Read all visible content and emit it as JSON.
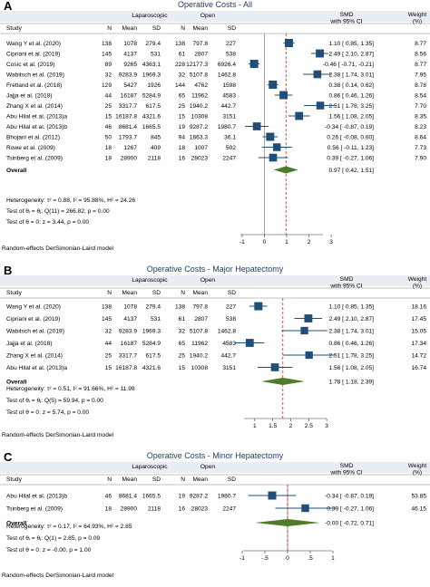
{
  "colors": {
    "marker": "#1f4e79",
    "diamond": "#4e7c2a",
    "title": "#1f3d7a",
    "refline": "#d62728",
    "frame": "#e9edf4"
  },
  "chart_data": [
    {
      "type": "forest",
      "panel_label": "A",
      "title": "Operative Costs - All",
      "group_headers": {
        "left": "Laparoscopic",
        "right": "Open",
        "effect": "SMD",
        "effect_sub": "with 95% CI",
        "weight": "Weight",
        "weight_sub": "(%)"
      },
      "column_headers": {
        "study": "Study",
        "n1": "N",
        "mean1": "Mean",
        "sd1": "SD",
        "n2": "N",
        "mean2": "Mean",
        "sd2": "SD"
      },
      "xlim": [
        -1.2,
        3.2
      ],
      "xticks": [
        "-1",
        "0",
        "1",
        "2",
        "3"
      ],
      "xtick_values": [
        -1,
        0,
        1,
        2,
        3
      ],
      "refline": 0.97,
      "studies": [
        {
          "study": "Wang Y et al. (2020)",
          "n1": "138",
          "mean1": "1078",
          "sd1": "279.4",
          "n2": "138",
          "mean2": "797.8",
          "sd2": "227",
          "smd": 1.1,
          "lo": 0.85,
          "hi": 1.35,
          "ci_text": "1.10 [  0.85,  1.35]",
          "weight": "8.77"
        },
        {
          "study": "Cipriani et al. (2019)",
          "n1": "145",
          "mean1": "4137",
          "sd1": "531",
          "n2": "61",
          "mean2": "2807",
          "sd2": "538",
          "smd": 2.49,
          "lo": 2.1,
          "hi": 2.87,
          "ci_text": "2.49 [  2.10,  2.87]",
          "weight": "8.56"
        },
        {
          "study": "Cosic et al. (2019)",
          "n1": "89",
          "mean1": "9265",
          "sd1": "4363.1",
          "n2": "228",
          "mean2": "12177.3",
          "sd2": "6926.4",
          "smd": -0.46,
          "lo": -0.71,
          "hi": -0.21,
          "ci_text": "-0.46 [ -0.71, -0.21]",
          "weight": "8.77"
        },
        {
          "study": "Wabitsch et al. (2019)",
          "n1": "32",
          "mean1": "9283.9",
          "sd1": "1969.3",
          "n2": "32",
          "mean2": "5107.8",
          "sd2": "1462.8",
          "smd": 2.38,
          "lo": 1.74,
          "hi": 3.01,
          "ci_text": "2.38 [  1.74,  3.01]",
          "weight": "7.95"
        },
        {
          "study": "Fretland et al. (2018)",
          "n1": "129",
          "mean1": "5427",
          "sd1": "1926",
          "n2": "144",
          "mean2": "4762",
          "sd2": "1598",
          "smd": 0.38,
          "lo": 0.14,
          "hi": 0.62,
          "ci_text": "0.38 [  0.14,  0.62]",
          "weight": "8.78"
        },
        {
          "study": "Jajja et al. (2018)",
          "n1": "44",
          "mean1": "16187",
          "sd1": "5284.9",
          "n2": "65",
          "mean2": "11962",
          "sd2": "4583",
          "smd": 0.86,
          "lo": 0.46,
          "hi": 1.26,
          "ci_text": "0.86 [  0.46,  1.26]",
          "weight": "8.54"
        },
        {
          "study": "Zhang X et al. (2014)",
          "n1": "25",
          "mean1": "3317.7",
          "sd1": "617.5",
          "n2": "25",
          "mean2": "1940.2",
          "sd2": "442.7",
          "smd": 2.51,
          "lo": 1.78,
          "hi": 3.25,
          "ci_text": "2.51 [  1.78,  3.25]",
          "weight": "7.70"
        },
        {
          "study": "Abu Hilal et al. (2013)a",
          "n1": "15",
          "mean1": "16187.8",
          "sd1": "4321.6",
          "n2": "15",
          "mean2": "10308",
          "sd2": "3151",
          "smd": 1.56,
          "lo": 1.08,
          "hi": 2.05,
          "ci_text": "1.56 [  1.08,  2.05]",
          "weight": "8.35"
        },
        {
          "study": "Abu Hilal et al. (2013)b",
          "n1": "46",
          "mean1": "8681.4",
          "sd1": "1665.5",
          "n2": "19",
          "mean2": "9287.2",
          "sd2": "1980.7",
          "smd": -0.34,
          "lo": -0.87,
          "hi": 0.19,
          "ci_text": "-0.34 [ -0.87,  0.19]",
          "weight": "8.23"
        },
        {
          "study": "Bhojani et al. (2012)",
          "n1": "50",
          "mean1": "1793.7",
          "sd1": "845",
          "n2": "94",
          "mean2": "1663.3",
          "sd2": "36.1",
          "smd": 0.26,
          "lo": -0.08,
          "hi": 0.6,
          "ci_text": "0.26 [ -0.08,  0.60]",
          "weight": "8.64"
        },
        {
          "study": "Rowe et al. (2009)",
          "n1": "18",
          "mean1": "1267",
          "sd1": "409",
          "n2": "18",
          "mean2": "1007",
          "sd2": "502",
          "smd": 0.56,
          "lo": -0.11,
          "hi": 1.23,
          "ci_text": "0.56 [ -0.11,  1.23]",
          "weight": "7.73"
        },
        {
          "study": "Tsinberg et al. (2009)",
          "n1": "18",
          "mean1": "28900",
          "sd1": "2118",
          "n2": "16",
          "mean2": "28023",
          "sd2": "2247",
          "smd": 0.39,
          "lo": -0.27,
          "hi": 1.06,
          "ci_text": "0.39 [ -0.27,  1.06]",
          "weight": "7.90"
        }
      ],
      "overall": {
        "label": "Overall",
        "smd": 0.97,
        "lo": 0.42,
        "hi": 1.51,
        "ci_text": "0.97 [  0.42,  1.51]"
      },
      "stats": [
        "Heterogeneity: τ² = 0.88, I² = 95.88%, H² = 24.26",
        "Test of θᵢ = θⱼ: Q(11) = 266.82, p = 0.00",
        "Test of θ = 0: z = 3.44, p = 0.00"
      ],
      "model_note": "Random-effects DerSimonian-Laird model"
    },
    {
      "type": "forest",
      "panel_label": "B",
      "title": "Operative Costs - Major Hepatectomy",
      "group_headers": {
        "left": "Laparoscopic",
        "right": "Open",
        "effect": "SMD",
        "effect_sub": "with 95% CI",
        "weight": "Weight",
        "weight_sub": "(%)"
      },
      "column_headers": {
        "study": "Study",
        "n1": "N",
        "mean1": "Mean",
        "sd1": "SD",
        "n2": "N",
        "mean2": "Mean",
        "sd2": "SD"
      },
      "xlim": [
        0.6,
        3.3
      ],
      "xticks": [
        "1",
        "1.5",
        "2",
        "2.5",
        "3"
      ],
      "xtick_values": [
        1,
        1.5,
        2,
        2.5,
        3
      ],
      "refline": 1.78,
      "studies": [
        {
          "study": "Wang Y et al. (2020)",
          "n1": "138",
          "mean1": "1078",
          "sd1": "279.4",
          "n2": "138",
          "mean2": "797.8",
          "sd2": "227",
          "smd": 1.1,
          "lo": 0.85,
          "hi": 1.35,
          "ci_text": "1.10 [ 0.85, 1.35]",
          "weight": "18.16"
        },
        {
          "study": "Cipriani et al. (2019)",
          "n1": "145",
          "mean1": "4137",
          "sd1": "531",
          "n2": "61",
          "mean2": "2807",
          "sd2": "538",
          "smd": 2.49,
          "lo": 2.1,
          "hi": 2.87,
          "ci_text": "2.49 [ 2.10, 2.87]",
          "weight": "17.45"
        },
        {
          "study": "Wabitsch et al. (2019)",
          "n1": "32",
          "mean1": "9283.9",
          "sd1": "1969.3",
          "n2": "32",
          "mean2": "5107.8",
          "sd2": "1462.8",
          "smd": 2.38,
          "lo": 1.74,
          "hi": 3.01,
          "ci_text": "2.38 [ 1.74, 3.01]",
          "weight": "15.05"
        },
        {
          "study": "Jajja et al. (2018)",
          "n1": "44",
          "mean1": "16187",
          "sd1": "5284.9",
          "n2": "65",
          "mean2": "11962",
          "sd2": "4583",
          "smd": 0.86,
          "lo": 0.46,
          "hi": 1.26,
          "ci_text": "0.86 [ 0.46, 1.26]",
          "weight": "17.34"
        },
        {
          "study": "Zhang X et al. (2014)",
          "n1": "25",
          "mean1": "3317.7",
          "sd1": "617.5",
          "n2": "25",
          "mean2": "1940.2",
          "sd2": "442.7",
          "smd": 2.51,
          "lo": 1.78,
          "hi": 3.25,
          "ci_text": "2.51 [ 1.78, 3.25]",
          "weight": "14.72"
        },
        {
          "study": "Abu Hilal et al. (2013)a",
          "n1": "15",
          "mean1": "16187.8",
          "sd1": "4321.6",
          "n2": "15",
          "mean2": "10308",
          "sd2": "3151",
          "smd": 1.56,
          "lo": 1.08,
          "hi": 2.05,
          "ci_text": "1.56 [ 1.08, 2.05]",
          "weight": "16.74"
        }
      ],
      "overall": {
        "label": "Overall",
        "smd": 1.78,
        "lo": 1.18,
        "hi": 2.39,
        "ci_text": "1.78 [ 1.18, 2.39]"
      },
      "stats": [
        "Heterogeneity: τ² = 0.51, I² = 91.66%, H² = 11.99",
        "Test of θᵢ = θⱼ: Q(5) = 59.94, p = 0.00",
        "Test of θ = 0: z = 5.74, p = 0.00"
      ],
      "model_note": "Random-effects DerSimonian-Laird model"
    },
    {
      "type": "forest",
      "panel_label": "C",
      "title": "Operative Costs - Minor Hepatectomy",
      "group_headers": {
        "left": "Laparoscopic",
        "right": "Open",
        "effect": "SMD",
        "effect_sub": "with 95% CI",
        "weight": "Weight",
        "weight_sub": "(%)"
      },
      "column_headers": {
        "study": "Study",
        "n1": "N",
        "mean1": "Mean",
        "sd1": "SD",
        "n2": "N",
        "mean2": "Mean",
        "sd2": "SD"
      },
      "xlim": [
        -1.1,
        1.1
      ],
      "xticks": [
        "-1",
        "-.5",
        "0",
        ".5",
        "1"
      ],
      "xtick_values": [
        -1,
        -0.5,
        0,
        0.5,
        1
      ],
      "refline": -0.0,
      "studies": [
        {
          "study": "Abu Hilal et al. (2013)b",
          "n1": "46",
          "mean1": "8681.4",
          "sd1": "1665.5",
          "n2": "19",
          "mean2": "9287.2",
          "sd2": "1980.7",
          "smd": -0.34,
          "lo": -0.87,
          "hi": 0.19,
          "ci_text": "-0.34 [ -0.87, 0.19]",
          "weight": "53.85"
        },
        {
          "study": "Tsinberg et al. (2009)",
          "n1": "18",
          "mean1": "28900",
          "sd1": "2118",
          "n2": "16",
          "mean2": "28023",
          "sd2": "2247",
          "smd": 0.39,
          "lo": -0.27,
          "hi": 1.06,
          "ci_text": "0.39 [ -0.27, 1.06]",
          "weight": "46.15"
        }
      ],
      "overall": {
        "label": "Overall",
        "smd": -0.0,
        "lo": -0.72,
        "hi": 0.71,
        "ci_text": "-0.00 [ -0.72, 0.71]"
      },
      "stats": [
        "Heterogeneity: τ² = 0.17, I² = 64.93%, H² = 2.85",
        "Test of θᵢ = θⱼ: Q(1) = 2.85, p = 0.09",
        "Test of θ = 0: z = -0.00, p = 1.00"
      ],
      "model_note": "Random-effects DerSimonian-Laird model"
    }
  ]
}
